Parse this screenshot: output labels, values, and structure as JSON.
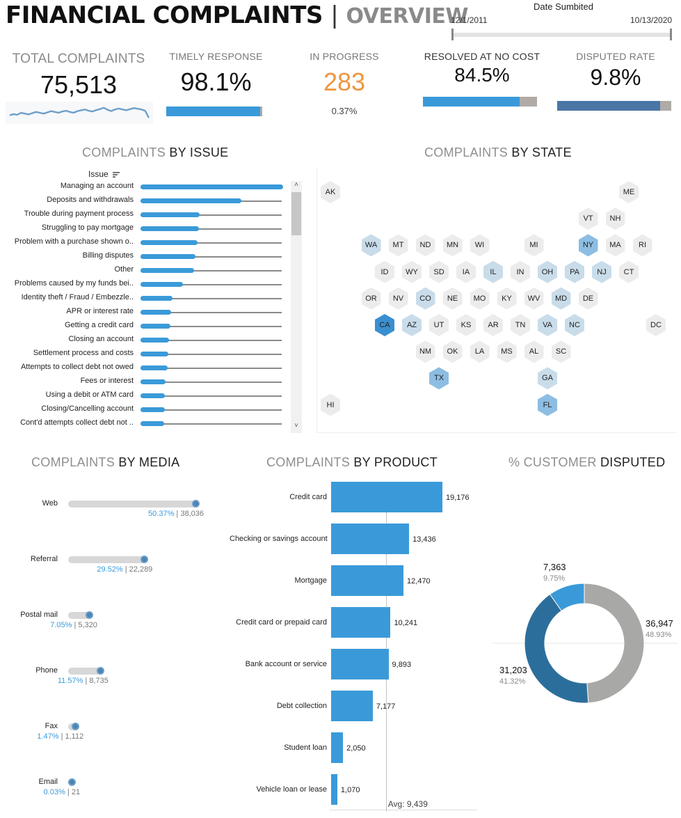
{
  "header": {
    "title": "FINANCIAL COMPLAINTS",
    "separator": "|",
    "subtitle": "OVERVIEW",
    "date_filter": {
      "caption": "Date Sumbited",
      "start": "12/1/2011",
      "end": "10/13/2020"
    }
  },
  "kpis": {
    "total": {
      "label": "TOTAL COMPLAINTS",
      "value": "75,513"
    },
    "timely": {
      "label": "TIMELY RESPONSE",
      "value": "98.1%",
      "bar_fraction": 0.981
    },
    "in_progress": {
      "label": "IN PROGRESS",
      "value": "283",
      "sub": "0.37%"
    },
    "resolved": {
      "label": "RESOLVED AT NO COST",
      "value": "84.5%",
      "bar_fraction": 0.845
    },
    "disputed": {
      "label": "DISPUTED RATE",
      "value": "9.8%",
      "bar_fraction": 0.902
    }
  },
  "colors": {
    "accent": "#3a9ad9",
    "dark_blue": "#2c6e9b",
    "steel_blue": "#4a76a6",
    "orange": "#f0953f",
    "gray": "#a8a9a6",
    "light_blue": "#c9dcea",
    "hex_gray": "#ececec"
  },
  "issues": {
    "title_light": "COMPLAINTS",
    "title_dark": "BY ISSUE",
    "header": "Issue",
    "sort_icon": "sort-icon"
  },
  "states": {
    "title_light": "COMPLAINTS",
    "title_dark": "BY STATE"
  },
  "media": {
    "title_light": "COMPLAINTS",
    "title_dark": "BY MEDIA"
  },
  "products": {
    "title_light": "COMPLAINTS",
    "title_dark": "BY PRODUCT",
    "avg_label": "Avg: 9,439"
  },
  "donut": {
    "title_light": "% CUSTOMER",
    "title_dark": "DISPUTED"
  },
  "chart_data": [
    {
      "type": "line",
      "id": "total-sparkline",
      "note": "sparkline under total complaints; no axis labels printed",
      "values": [
        0.35,
        0.42,
        0.38,
        0.5,
        0.45,
        0.4,
        0.48,
        0.55,
        0.5,
        0.45,
        0.52,
        0.6,
        0.55,
        0.5,
        0.58,
        0.62,
        0.55,
        0.5,
        0.6,
        0.65,
        0.7,
        0.62,
        0.58,
        0.66,
        0.72,
        0.8,
        0.68,
        0.6,
        0.7,
        0.75,
        0.7,
        0.65,
        0.72,
        0.78,
        0.74,
        0.7,
        0.62,
        0.2
      ]
    },
    {
      "type": "bar",
      "id": "complaints-by-issue",
      "categories": [
        "Managing an account",
        "Deposits and withdrawals",
        "Trouble during payment process",
        "Struggling to pay mortgage",
        "Problem with a purchase shown o..",
        "Billing disputes",
        "Other",
        "Problems caused by my funds bei..",
        "Identity theft / Fraud / Embezzle..",
        "APR or interest rate",
        "Getting a credit card",
        "Closing an account",
        "Settlement process and costs",
        "Attempts to collect debt not owed",
        "Fees or interest",
        "Using a debit or ATM card",
        "Closing/Cancelling account",
        "Cont'd attempts collect debt not .."
      ],
      "values": [
        5050,
        3560,
        2100,
        2060,
        2020,
        1940,
        1890,
        1500,
        1130,
        1080,
        1050,
        1000,
        990,
        960,
        880,
        860,
        850,
        840
      ]
    },
    {
      "type": "heatmap",
      "id": "complaints-by-state",
      "note": "hex tile map, shading level 0=lowest 3=highest",
      "states": [
        {
          "code": "AK",
          "level": 0
        },
        {
          "code": "ME",
          "level": 0
        },
        {
          "code": "VT",
          "level": 0
        },
        {
          "code": "NH",
          "level": 0
        },
        {
          "code": "WA",
          "level": 1
        },
        {
          "code": "MT",
          "level": 0
        },
        {
          "code": "ND",
          "level": 0
        },
        {
          "code": "MN",
          "level": 0
        },
        {
          "code": "WI",
          "level": 0
        },
        {
          "code": "MI",
          "level": 0
        },
        {
          "code": "NY",
          "level": 2
        },
        {
          "code": "MA",
          "level": 0
        },
        {
          "code": "RI",
          "level": 0
        },
        {
          "code": "ID",
          "level": 0
        },
        {
          "code": "WY",
          "level": 0
        },
        {
          "code": "SD",
          "level": 0
        },
        {
          "code": "IA",
          "level": 0
        },
        {
          "code": "IL",
          "level": 1
        },
        {
          "code": "IN",
          "level": 0
        },
        {
          "code": "OH",
          "level": 1
        },
        {
          "code": "PA",
          "level": 1
        },
        {
          "code": "NJ",
          "level": 1
        },
        {
          "code": "CT",
          "level": 0
        },
        {
          "code": "OR",
          "level": 0
        },
        {
          "code": "NV",
          "level": 0
        },
        {
          "code": "CO",
          "level": 1
        },
        {
          "code": "NE",
          "level": 0
        },
        {
          "code": "MO",
          "level": 0
        },
        {
          "code": "KY",
          "level": 0
        },
        {
          "code": "WV",
          "level": 0
        },
        {
          "code": "MD",
          "level": 1
        },
        {
          "code": "DE",
          "level": 0
        },
        {
          "code": "CA",
          "level": 3
        },
        {
          "code": "AZ",
          "level": 1
        },
        {
          "code": "UT",
          "level": 0
        },
        {
          "code": "KS",
          "level": 0
        },
        {
          "code": "AR",
          "level": 0
        },
        {
          "code": "TN",
          "level": 0
        },
        {
          "code": "VA",
          "level": 1
        },
        {
          "code": "NC",
          "level": 1
        },
        {
          "code": "DC",
          "level": 0
        },
        {
          "code": "NM",
          "level": 0
        },
        {
          "code": "OK",
          "level": 0
        },
        {
          "code": "LA",
          "level": 0
        },
        {
          "code": "MS",
          "level": 0
        },
        {
          "code": "AL",
          "level": 0
        },
        {
          "code": "SC",
          "level": 0
        },
        {
          "code": "TX",
          "level": 2
        },
        {
          "code": "GA",
          "level": 1
        },
        {
          "code": "HI",
          "level": 0
        },
        {
          "code": "FL",
          "level": 2
        }
      ]
    },
    {
      "type": "bar",
      "id": "complaints-by-media",
      "categories": [
        "Web",
        "Referral",
        "Postal mail",
        "Phone",
        "Fax",
        "Email"
      ],
      "values": [
        38036,
        22289,
        5320,
        8735,
        1112,
        21
      ],
      "percent_labels": [
        "50.37%",
        "29.52%",
        "7.05%",
        "11.57%",
        "1.47%",
        "0.03%"
      ],
      "value_labels": [
        "38,036",
        "22,289",
        "5,320",
        "8,735",
        "1,112",
        "21"
      ]
    },
    {
      "type": "bar",
      "id": "complaints-by-product",
      "categories": [
        "Credit card",
        "Checking or savings account",
        "Mortgage",
        "Credit card or prepaid card",
        "Bank account or service",
        "Debt collection",
        "Student loan",
        "Vehicle loan or lease"
      ],
      "values": [
        19176,
        13436,
        12470,
        10241,
        9893,
        7177,
        2050,
        1070
      ],
      "value_labels": [
        "19,176",
        "13,436",
        "12,470",
        "10,241",
        "9,893",
        "7,177",
        "2,050",
        "1,070"
      ],
      "average": 9439
    },
    {
      "type": "pie",
      "id": "customer-disputed",
      "values": [
        36947,
        31203,
        7363
      ],
      "value_labels": [
        "36,947",
        "31,203",
        "7,363"
      ],
      "percent_labels": [
        "48.93%",
        "41.32%",
        "9.75%"
      ],
      "colors": [
        "#a8a9a6",
        "#2c6e9b",
        "#3a9ad9"
      ]
    }
  ]
}
